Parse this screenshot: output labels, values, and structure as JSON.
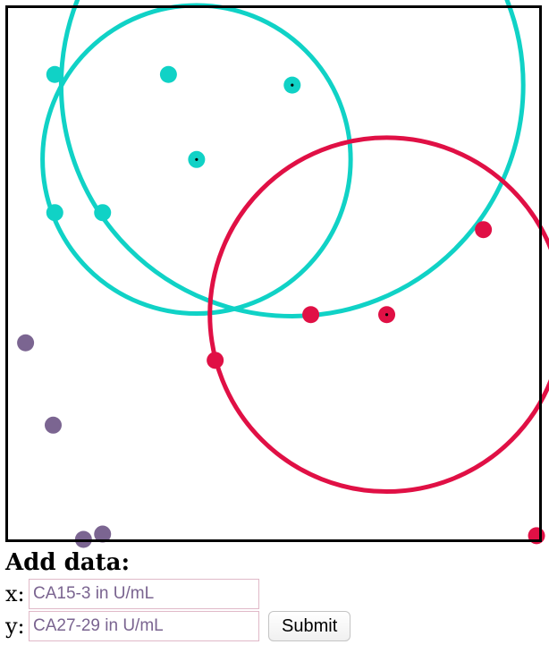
{
  "form": {
    "title": "Add data:",
    "x_label": "x:",
    "y_label": "y:",
    "x_placeholder": "CA15-3 in U/mL",
    "y_placeholder": "CA27-29 in U/mL",
    "submit_label": "Submit"
  },
  "chart_data": {
    "type": "scatter",
    "title": "",
    "xlabel": "",
    "ylabel": "",
    "xlim": [
      0,
      100
    ],
    "ylim": [
      0,
      100
    ],
    "grid": false,
    "colors": {
      "cyan": "#10d2c6",
      "red": "#e01045",
      "purple": "#7b6591",
      "frame": "#000000"
    },
    "series": [
      {
        "color": "#10d2c6",
        "values": [
          {
            "x": 8.8,
            "y": 87.5
          },
          {
            "x": 30.2,
            "y": 87.5
          },
          {
            "x": 53.5,
            "y": 85.5
          },
          {
            "x": 35.5,
            "y": 71.5
          },
          {
            "x": 8.8,
            "y": 61.5
          },
          {
            "x": 17.8,
            "y": 61.5
          }
        ],
        "center_marks": [
          {
            "x": 53.5,
            "y": 85.5
          },
          {
            "x": 35.5,
            "y": 71.5
          }
        ],
        "circles": [
          {
            "cx": 53.5,
            "cy": 85.5,
            "r": 43.5
          },
          {
            "cx": 35.5,
            "cy": 71.5,
            "r": 29
          }
        ]
      },
      {
        "color": "#e01045",
        "values": [
          {
            "x": 89.5,
            "y": 58.3
          },
          {
            "x": 57.0,
            "y": 42.3
          },
          {
            "x": 71.3,
            "y": 42.3
          },
          {
            "x": 39.0,
            "y": 33.7
          },
          {
            "x": 99.5,
            "y": 0.7
          }
        ],
        "center_marks": [
          {
            "x": 71.3,
            "y": 42.3
          }
        ],
        "circles": [
          {
            "cx": 71.3,
            "cy": 42.3,
            "r": 33.3
          }
        ]
      },
      {
        "color": "#7b6591",
        "values": [
          {
            "x": 3.3,
            "y": 37.0
          },
          {
            "x": 8.5,
            "y": 21.5
          },
          {
            "x": 17.8,
            "y": 1.0
          },
          {
            "x": 14.2,
            "y": 0.0
          }
        ],
        "center_marks": [],
        "circles": []
      }
    ]
  }
}
